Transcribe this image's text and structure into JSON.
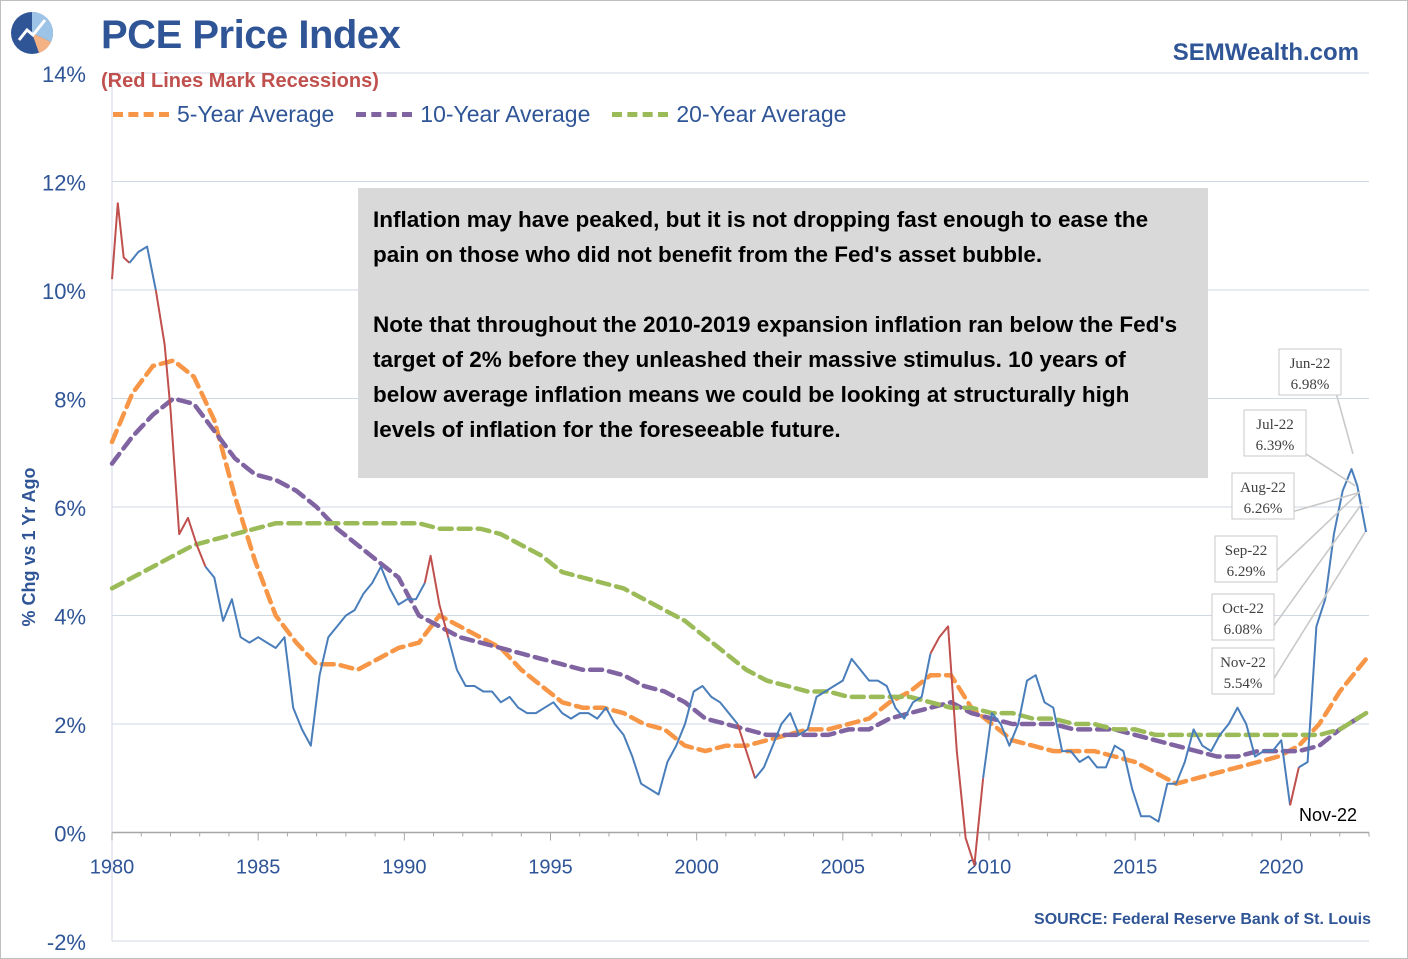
{
  "header": {
    "title": "PCE Price Index",
    "subtitle": "(Red Lines Mark Recessions)",
    "brand": "SEMWealth.com",
    "source": "SOURCE:  Federal Reserve Bank of St. Louis"
  },
  "annotation": {
    "paragraph1": "Inflation may have peaked, but it is not dropping fast enough to ease the pain on those who did not benefit from the Fed's asset bubble.",
    "paragraph2": "Note that throughout the 2010-2019 expansion inflation ran below the Fed's target of 2% before they unleashed their massive stimulus. 10 years of below average inflation means we could be looking at structurally high levels of inflation for the foreseeable future."
  },
  "chart_data": {
    "type": "line",
    "title": "PCE Price Index",
    "ylabel": "% Chg vs 1 Yr Ago",
    "xlim": [
      1980,
      2023
    ],
    "ylim": [
      -2,
      14
    ],
    "x_ticks": [
      1980,
      1985,
      1990,
      1995,
      2000,
      2005,
      2010,
      2015,
      2020
    ],
    "y_ticks": [
      -2,
      0,
      2,
      4,
      6,
      8,
      10,
      12,
      14
    ],
    "y_tick_labels": [
      "-2%",
      "0%",
      "2%",
      "4%",
      "6%",
      "8%",
      "10%",
      "12%",
      "14%"
    ],
    "grid": true,
    "legend": "top-left",
    "colors": {
      "pce": "#4a7ebb",
      "recession": "#c0504d",
      "avg5": "#f79646",
      "avg10": "#8064a2",
      "avg20": "#9bbb59"
    },
    "recessions": [
      [
        1980.0,
        1980.5
      ],
      [
        1981.5,
        1982.9
      ],
      [
        1990.5,
        1991.2
      ],
      [
        2001.2,
        2001.9
      ],
      [
        2007.9,
        2009.5
      ],
      [
        2020.1,
        2020.4
      ]
    ],
    "pce": {
      "x": [
        1980.0,
        1980.2,
        1980.4,
        1980.6,
        1980.9,
        1981.2,
        1981.5,
        1981.8,
        1982.0,
        1982.3,
        1982.6,
        1982.9,
        1983.2,
        1983.5,
        1983.8,
        1984.1,
        1984.4,
        1984.7,
        1985.0,
        1985.3,
        1985.6,
        1985.9,
        1986.2,
        1986.5,
        1986.8,
        1987.1,
        1987.4,
        1987.7,
        1988.0,
        1988.3,
        1988.6,
        1988.9,
        1989.2,
        1989.5,
        1989.8,
        1990.1,
        1990.4,
        1990.7,
        1990.9,
        1991.2,
        1991.5,
        1991.8,
        1992.1,
        1992.4,
        1992.7,
        1993.0,
        1993.3,
        1993.6,
        1993.9,
        1994.2,
        1994.5,
        1994.8,
        1995.1,
        1995.4,
        1995.7,
        1996.0,
        1996.3,
        1996.6,
        1996.9,
        1997.2,
        1997.5,
        1997.8,
        1998.1,
        1998.4,
        1998.7,
        1999.0,
        1999.3,
        1999.6,
        1999.9,
        2000.2,
        2000.5,
        2000.8,
        2001.1,
        2001.4,
        2001.7,
        2002.0,
        2002.3,
        2002.6,
        2002.9,
        2003.2,
        2003.5,
        2003.8,
        2004.1,
        2004.4,
        2004.7,
        2005.0,
        2005.3,
        2005.6,
        2005.9,
        2006.2,
        2006.5,
        2006.8,
        2007.1,
        2007.4,
        2007.7,
        2008.0,
        2008.3,
        2008.6,
        2008.9,
        2009.2,
        2009.5,
        2009.8,
        2010.1,
        2010.4,
        2010.7,
        2011.0,
        2011.3,
        2011.6,
        2011.9,
        2012.2,
        2012.5,
        2012.8,
        2013.1,
        2013.4,
        2013.7,
        2014.0,
        2014.3,
        2014.6,
        2014.9,
        2015.2,
        2015.5,
        2015.8,
        2016.1,
        2016.4,
        2016.7,
        2017.0,
        2017.3,
        2017.6,
        2017.9,
        2018.2,
        2018.5,
        2018.8,
        2019.1,
        2019.4,
        2019.7,
        2020.0,
        2020.3,
        2020.6,
        2020.9,
        2021.2,
        2021.5,
        2021.8,
        2022.1,
        2022.4,
        2022.6,
        2022.9
      ],
      "y": [
        10.2,
        11.6,
        10.6,
        10.5,
        10.7,
        10.8,
        10.0,
        9.0,
        7.8,
        5.5,
        5.8,
        5.3,
        4.9,
        4.7,
        3.9,
        4.3,
        3.6,
        3.5,
        3.6,
        3.5,
        3.4,
        3.6,
        2.3,
        1.9,
        1.6,
        2.9,
        3.6,
        3.8,
        4.0,
        4.1,
        4.4,
        4.6,
        4.9,
        4.5,
        4.2,
        4.3,
        4.3,
        4.6,
        5.1,
        4.2,
        3.6,
        3.0,
        2.7,
        2.7,
        2.6,
        2.6,
        2.4,
        2.5,
        2.3,
        2.2,
        2.2,
        2.3,
        2.4,
        2.2,
        2.1,
        2.2,
        2.2,
        2.1,
        2.3,
        2.0,
        1.8,
        1.4,
        0.9,
        0.8,
        0.7,
        1.3,
        1.6,
        2.0,
        2.6,
        2.7,
        2.5,
        2.4,
        2.2,
        2.0,
        1.5,
        1.0,
        1.2,
        1.6,
        2.0,
        2.2,
        1.8,
        1.9,
        2.5,
        2.6,
        2.7,
        2.8,
        3.2,
        3.0,
        2.8,
        2.8,
        2.7,
        2.3,
        2.1,
        2.4,
        2.5,
        3.3,
        3.6,
        3.8,
        1.5,
        -0.1,
        -0.6,
        1.0,
        2.2,
        2.0,
        1.6,
        2.0,
        2.8,
        2.9,
        2.4,
        2.3,
        1.5,
        1.5,
        1.3,
        1.4,
        1.2,
        1.2,
        1.6,
        1.5,
        0.8,
        0.3,
        0.3,
        0.2,
        0.9,
        0.9,
        1.3,
        1.9,
        1.6,
        1.5,
        1.8,
        2.0,
        2.3,
        2.0,
        1.4,
        1.5,
        1.5,
        1.7,
        0.5,
        1.2,
        1.3,
        3.8,
        4.3,
        5.5,
        6.3,
        6.7,
        6.39,
        5.54
      ]
    },
    "series": [
      {
        "name": "5-Year Average",
        "x": [
          1980.0,
          1980.7,
          1981.4,
          1982.1,
          1982.8,
          1983.5,
          1984.2,
          1984.9,
          1985.6,
          1986.3,
          1987.0,
          1987.7,
          1988.4,
          1989.1,
          1989.8,
          1990.5,
          1991.2,
          1991.9,
          1992.6,
          1993.3,
          1994.0,
          1994.7,
          1995.4,
          1996.1,
          1996.8,
          1997.5,
          1998.2,
          1998.9,
          1999.6,
          2000.3,
          2001.0,
          2001.7,
          2002.4,
          2003.1,
          2003.8,
          2004.5,
          2005.2,
          2005.9,
          2006.6,
          2007.3,
          2008.0,
          2008.7,
          2009.4,
          2010.1,
          2010.8,
          2011.5,
          2012.2,
          2012.9,
          2013.6,
          2014.3,
          2015.0,
          2015.7,
          2016.4,
          2017.1,
          2017.8,
          2018.5,
          2019.2,
          2019.9,
          2020.6,
          2021.3,
          2022.0,
          2022.9
        ],
        "y": [
          7.2,
          8.1,
          8.6,
          8.7,
          8.4,
          7.6,
          6.2,
          5.0,
          4.0,
          3.5,
          3.1,
          3.1,
          3.0,
          3.2,
          3.4,
          3.5,
          4.0,
          3.8,
          3.6,
          3.4,
          3.0,
          2.7,
          2.4,
          2.3,
          2.3,
          2.2,
          2.0,
          1.9,
          1.6,
          1.5,
          1.6,
          1.6,
          1.7,
          1.8,
          1.9,
          1.9,
          2.0,
          2.1,
          2.4,
          2.6,
          2.9,
          2.9,
          2.3,
          2.0,
          1.7,
          1.6,
          1.5,
          1.5,
          1.5,
          1.4,
          1.3,
          1.1,
          0.9,
          1.0,
          1.1,
          1.2,
          1.3,
          1.4,
          1.6,
          2.0,
          2.6,
          3.2
        ]
      },
      {
        "name": "10-Year Average",
        "x": [
          1980.0,
          1980.7,
          1981.4,
          1982.1,
          1982.8,
          1983.5,
          1984.2,
          1984.9,
          1985.6,
          1986.3,
          1987.0,
          1987.7,
          1988.4,
          1989.1,
          1989.8,
          1990.5,
          1991.2,
          1991.9,
          1992.6,
          1993.3,
          1994.0,
          1994.7,
          1995.4,
          1996.1,
          1996.8,
          1997.5,
          1998.2,
          1998.9,
          1999.6,
          2000.3,
          2001.0,
          2001.7,
          2002.4,
          2003.1,
          2003.8,
          2004.5,
          2005.2,
          2005.9,
          2006.6,
          2007.3,
          2008.0,
          2008.7,
          2009.4,
          2010.1,
          2010.8,
          2011.5,
          2012.2,
          2012.9,
          2013.6,
          2014.3,
          2015.0,
          2015.7,
          2016.4,
          2017.1,
          2017.8,
          2018.5,
          2019.2,
          2019.9,
          2020.6,
          2021.3,
          2022.0,
          2022.9
        ],
        "y": [
          6.8,
          7.3,
          7.7,
          8.0,
          7.9,
          7.4,
          6.9,
          6.6,
          6.5,
          6.3,
          6.0,
          5.6,
          5.3,
          5.0,
          4.7,
          4.0,
          3.8,
          3.6,
          3.5,
          3.4,
          3.3,
          3.2,
          3.1,
          3.0,
          3.0,
          2.9,
          2.7,
          2.6,
          2.4,
          2.1,
          2.0,
          1.9,
          1.8,
          1.8,
          1.8,
          1.8,
          1.9,
          1.9,
          2.1,
          2.2,
          2.3,
          2.4,
          2.2,
          2.1,
          2.0,
          2.0,
          2.0,
          1.9,
          1.9,
          1.9,
          1.8,
          1.7,
          1.6,
          1.5,
          1.4,
          1.4,
          1.5,
          1.5,
          1.5,
          1.6,
          1.9,
          2.2
        ]
      },
      {
        "name": "20-Year Average",
        "x": [
          1980.0,
          1980.7,
          1981.4,
          1982.1,
          1982.8,
          1983.5,
          1984.2,
          1984.9,
          1985.6,
          1986.3,
          1987.0,
          1987.7,
          1988.4,
          1989.1,
          1989.8,
          1990.5,
          1991.2,
          1991.9,
          1992.6,
          1993.3,
          1994.0,
          1994.7,
          1995.4,
          1996.1,
          1996.8,
          1997.5,
          1998.2,
          1998.9,
          1999.6,
          2000.3,
          2001.0,
          2001.7,
          2002.4,
          2003.1,
          2003.8,
          2004.5,
          2005.2,
          2005.9,
          2006.6,
          2007.3,
          2008.0,
          2008.7,
          2009.4,
          2010.1,
          2010.8,
          2011.5,
          2012.2,
          2012.9,
          2013.6,
          2014.3,
          2015.0,
          2015.7,
          2016.4,
          2017.1,
          2017.8,
          2018.5,
          2019.2,
          2019.9,
          2020.6,
          2021.3,
          2022.0,
          2022.9
        ],
        "y": [
          4.5,
          4.7,
          4.9,
          5.1,
          5.3,
          5.4,
          5.5,
          5.6,
          5.7,
          5.7,
          5.7,
          5.7,
          5.7,
          5.7,
          5.7,
          5.7,
          5.6,
          5.6,
          5.6,
          5.5,
          5.3,
          5.1,
          4.8,
          4.7,
          4.6,
          4.5,
          4.3,
          4.1,
          3.9,
          3.6,
          3.3,
          3.0,
          2.8,
          2.7,
          2.6,
          2.6,
          2.5,
          2.5,
          2.5,
          2.5,
          2.4,
          2.3,
          2.3,
          2.2,
          2.2,
          2.1,
          2.1,
          2.0,
          2.0,
          1.9,
          1.9,
          1.8,
          1.8,
          1.8,
          1.8,
          1.8,
          1.8,
          1.8,
          1.8,
          1.8,
          1.9,
          2.2
        ]
      }
    ],
    "callouts": [
      {
        "month": "Jun-22",
        "value": "6.98%",
        "x": 2022.45,
        "y": 6.98
      },
      {
        "month": "Jul-22",
        "value": "6.39%",
        "x": 2022.53,
        "y": 6.39
      },
      {
        "month": "Aug-22",
        "value": "6.26%",
        "x": 2022.62,
        "y": 6.26
      },
      {
        "month": "Sep-22",
        "value": "6.29%",
        "x": 2022.7,
        "y": 6.29
      },
      {
        "month": "Oct-22",
        "value": "6.08%",
        "x": 2022.78,
        "y": 6.08
      },
      {
        "month": "Nov-22",
        "value": "5.54%",
        "x": 2022.87,
        "y": 5.54
      }
    ],
    "end_label": "Nov-22"
  }
}
